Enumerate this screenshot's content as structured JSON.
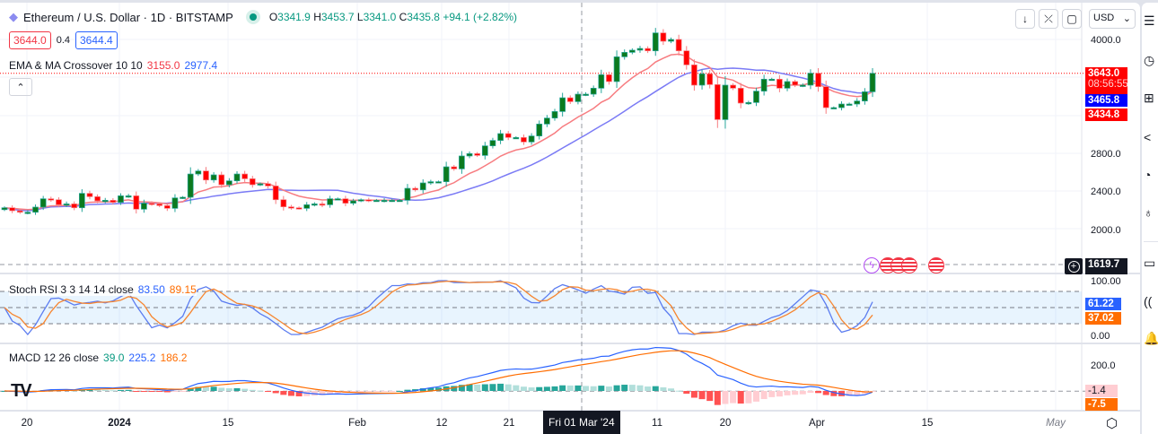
{
  "header": {
    "symbol_title": "Ethereum / U.S. Dollar · 1D · BITSTAMP",
    "open": "3341.9",
    "high": "3453.7",
    "low": "3341.0",
    "close": "3435.8",
    "change": "+94.1 (+2.82%)",
    "status_color": "#089981",
    "bid": "3644.0",
    "spread": "0.4",
    "ask": "3644.4",
    "collapse_icon": "chevron-up-icon"
  },
  "indicators": {
    "ema_ma": {
      "label": "EMA & MA Crossover 10 10",
      "ema": "3155.0",
      "ma": "2977.4",
      "ema_color": "#f23645",
      "ma_color": "#2962ff"
    },
    "stoch": {
      "label": "Stoch RSI 3 3 14 14 close",
      "k": "83.50",
      "d": "89.15",
      "k_color": "#2962ff",
      "d_color": "#ff6d00"
    },
    "macd": {
      "label": "MACD 12 26 close",
      "hist": "39.0",
      "macd": "225.2",
      "signal": "186.2"
    }
  },
  "toolbar": {
    "currency": "USD",
    "buttons": [
      "arrow-down-icon",
      "collapse-icon",
      "fullscreen-icon"
    ]
  },
  "price_axis": {
    "ticks": [
      "4000.0",
      "2800.0",
      "2400.0",
      "2000.0"
    ],
    "last_price": "3643.0",
    "countdown": "08:56:55",
    "ma_value": "3465.8",
    "ema_value": "3434.8",
    "crosshair_price": "1619.7"
  },
  "stoch_axis": {
    "ticks": [
      "100.00",
      "0.00"
    ],
    "k_value": "61.22",
    "d_value": "37.02"
  },
  "macd_axis": {
    "ticks": [
      "200.0"
    ],
    "macd_value": "-1.4",
    "signal_value": "-7.5"
  },
  "time_axis": {
    "ticks": [
      "20",
      "2024",
      "15",
      "Feb",
      "12",
      "21",
      "11",
      "20",
      "Apr",
      "15",
      "May"
    ],
    "crosshair_date": "Fri 01 Mar '24"
  },
  "right_sidebar": [
    "watchlist-icon",
    "alerts-icon",
    "add-icon",
    "ideas-icon",
    "calendar-icon",
    "lightbulb-icon",
    "chat-icon",
    "broadcast-icon",
    "bell-icon"
  ],
  "chart_data": {
    "type": "candlestick",
    "colors": {
      "up": "#0b7a1f",
      "down": "#ff0000",
      "ema": "#f77c80",
      "ma": "#7b7bf5",
      "stoch_k": "#5b7cf0",
      "stoch_d": "#f7852f"
    },
    "ylim": [
      1600,
      4150
    ],
    "close": [
      2225,
      2194,
      2178,
      2178,
      2232,
      2320,
      2310,
      2257,
      2266,
      2225,
      2377,
      2342,
      2298,
      2304,
      2282,
      2351,
      2351,
      2210,
      2273,
      2266,
      2248,
      2219,
      2329,
      2336,
      2581,
      2613,
      2518,
      2572,
      2468,
      2509,
      2581,
      2531,
      2468,
      2478,
      2455,
      2310,
      2235,
      2225,
      2219,
      2257,
      2266,
      2257,
      2320,
      2320,
      2273,
      2298,
      2310,
      2304,
      2304,
      2304,
      2304,
      2304,
      2430,
      2414,
      2487,
      2500,
      2500,
      2657,
      2635,
      2771,
      2796,
      2777,
      2878,
      2935,
      3007,
      2966,
      2966,
      2919,
      2982,
      3108,
      3171,
      3240,
      3385,
      3344,
      3423,
      3423,
      3486,
      3628,
      3556,
      3817,
      3864,
      3887,
      3905,
      3880,
      4069,
      3981,
      4000,
      3880,
      3732,
      3518,
      3638,
      3524,
      3155,
      3518,
      3486,
      3329,
      3335,
      3455,
      3581,
      3581,
      3486,
      3556,
      3518,
      3518,
      3644,
      3502,
      3281,
      3281,
      3319,
      3319,
      3351,
      3448,
      3643
    ]
  }
}
